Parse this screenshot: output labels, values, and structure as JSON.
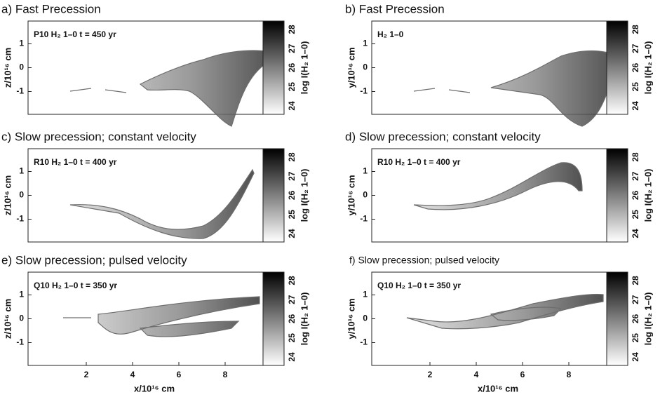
{
  "xlabel": "x/10¹⁶ cm",
  "xticks": [
    2,
    4,
    6,
    8
  ],
  "colorbar_ticks": [
    24,
    25,
    26,
    27,
    28
  ],
  "colorbar_label": "log I(H₂ 1–0)",
  "panels": [
    {
      "title": "a) Fast Precession",
      "label": "P10  H₂ 1–0  t = 450 yr",
      "ylabel": "z/10¹⁶ cm",
      "yticks": [
        1,
        0,
        -1
      ]
    },
    {
      "title": "b) Fast Precession",
      "label": "H₂ 1–0",
      "ylabel": "y/10¹⁶ cm",
      "yticks": [
        1,
        0,
        -1
      ]
    },
    {
      "title": "c) Slow precession; constant velocity",
      "label": "R10  H₂ 1–0  t = 400 yr",
      "ylabel": "z/10¹⁶ cm",
      "yticks": [
        1,
        0,
        -1
      ]
    },
    {
      "title": "d) Slow precession; constant velocity",
      "label": "R10  H₂ 1–0  t = 400 yr",
      "ylabel": "y/10¹⁶ cm",
      "yticks": [
        1,
        0,
        -1
      ]
    },
    {
      "title": "e) Slow precession; pulsed velocity",
      "label": "Q10  H₂ 1–0  t = 350 yr",
      "ylabel": "z/10¹⁶ cm",
      "yticks": [
        1,
        0,
        -1
      ]
    },
    {
      "title": "f) Slow precession; pulsed velocity",
      "label": "Q10  H₂ 1–0  t = 350 yr",
      "ylabel": "y/10¹⁶ cm",
      "yticks": [
        1,
        0,
        -1
      ]
    }
  ]
}
